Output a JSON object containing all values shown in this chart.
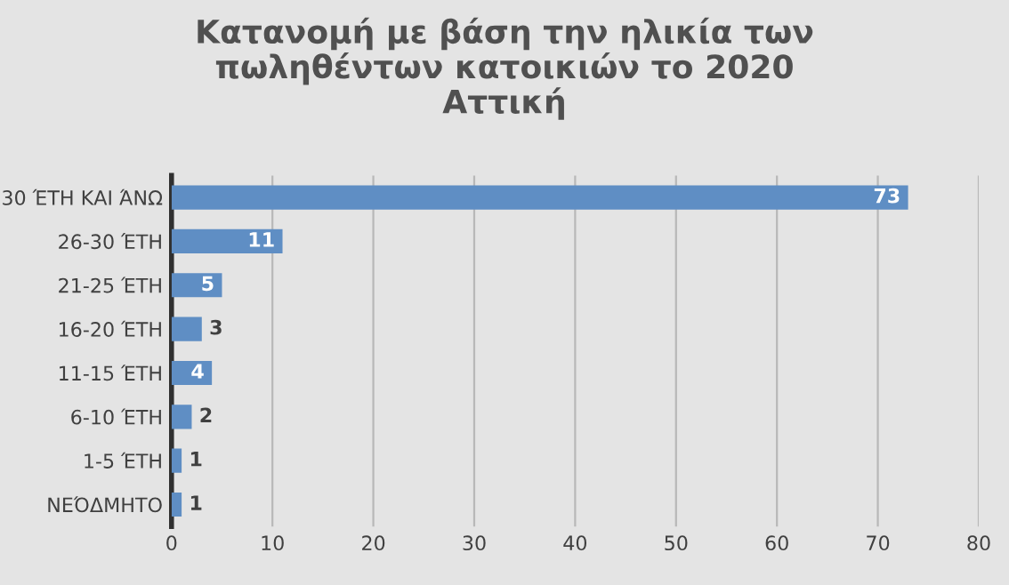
{
  "chart_data": {
    "type": "bar",
    "orientation": "horizontal",
    "title": "Κατανομή με βάση την ηλικία των\nπωληθέντων κατοικιών το 2020\nΑττική",
    "categories": [
      "30 ΈΤΗ ΚΑΙ ΆΝΩ",
      "26-30 ΈΤΗ",
      "21-25 ΈΤΗ",
      "16-20 ΈΤΗ",
      "11-15 ΈΤΗ",
      "6-10 ΈΤΗ",
      "1-5 ΈΤΗ",
      "ΝΕΌΔΜΗΤΟ"
    ],
    "values": [
      73,
      11,
      5,
      3,
      4,
      2,
      1,
      1
    ],
    "color": "#5f8ec4",
    "xlim": [
      0,
      80
    ],
    "xticks": [
      0,
      10,
      20,
      30,
      40,
      50,
      60,
      70,
      80
    ],
    "grid": "x",
    "data_labels": true
  }
}
